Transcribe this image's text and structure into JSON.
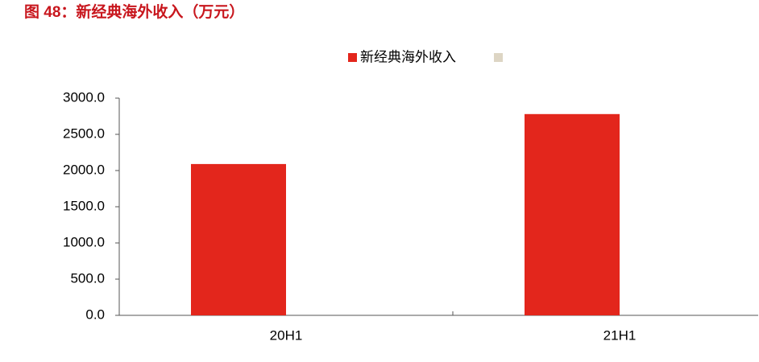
{
  "chart_data": {
    "type": "bar",
    "title": "图 48：新经典海外收入（万元）",
    "categories": [
      "20H1",
      "21H1"
    ],
    "series": [
      {
        "name": "新经典海外收入",
        "color": "#e3261c",
        "values": [
          2090,
          2780
        ]
      }
    ],
    "ylim": [
      0,
      3000
    ],
    "yticks": [
      {
        "value": 0,
        "label": "0.0"
      },
      {
        "value": 500,
        "label": "500.0"
      },
      {
        "value": 1000,
        "label": "1000.0"
      },
      {
        "value": 1500,
        "label": "1500.0"
      },
      {
        "value": 2000,
        "label": "2000.0"
      },
      {
        "value": 2500,
        "label": "2500.0"
      },
      {
        "value": 3000,
        "label": "3000.0"
      }
    ],
    "grid": false
  }
}
